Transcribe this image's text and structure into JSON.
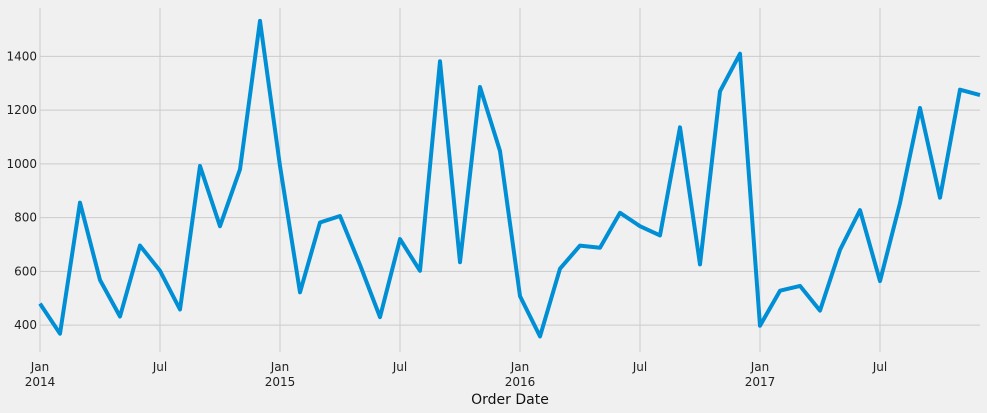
{
  "chart_data": {
    "type": "line",
    "title": "",
    "xlabel": "Order Date",
    "ylabel": "",
    "x_tick_labels": [
      {
        "date": "2014-01",
        "line1": "Jan",
        "line2": "2014"
      },
      {
        "date": "2014-07",
        "line1": "Jul",
        "line2": ""
      },
      {
        "date": "2015-01",
        "line1": "Jan",
        "line2": "2015"
      },
      {
        "date": "2015-07",
        "line1": "Jul",
        "line2": ""
      },
      {
        "date": "2016-01",
        "line1": "Jan",
        "line2": "2016"
      },
      {
        "date": "2016-07",
        "line1": "Jul",
        "line2": ""
      },
      {
        "date": "2017-01",
        "line1": "Jan",
        "line2": "2017"
      },
      {
        "date": "2017-07",
        "line1": "Jul",
        "line2": ""
      }
    ],
    "y_ticks": [
      400,
      600,
      800,
      1000,
      1200,
      1400
    ],
    "y_tick_labels": [
      "400",
      "600",
      "800",
      "1000",
      "1200",
      "1400"
    ],
    "xlim": [
      "2014-01",
      "2017-12"
    ],
    "ylim": [
      300,
      1580
    ],
    "grid": true,
    "line_color": "#008fd5",
    "x": [
      "2014-01",
      "2014-02",
      "2014-03",
      "2014-04",
      "2014-05",
      "2014-06",
      "2014-07",
      "2014-08",
      "2014-09",
      "2014-10",
      "2014-11",
      "2014-12",
      "2015-01",
      "2015-02",
      "2015-03",
      "2015-04",
      "2015-05",
      "2015-06",
      "2015-07",
      "2015-08",
      "2015-09",
      "2015-10",
      "2015-11",
      "2015-12",
      "2016-01",
      "2016-02",
      "2016-03",
      "2016-04",
      "2016-05",
      "2016-06",
      "2016-07",
      "2016-08",
      "2016-09",
      "2016-10",
      "2016-11",
      "2016-12",
      "2017-01",
      "2017-02",
      "2017-03",
      "2017-04",
      "2017-05",
      "2017-06",
      "2017-07",
      "2017-08",
      "2017-09",
      "2017-10",
      "2017-11",
      "2017-12"
    ],
    "values": [
      480,
      368,
      856,
      568,
      432,
      696,
      602,
      458,
      992,
      768,
      980,
      1532,
      992,
      522,
      782,
      806,
      624,
      430,
      720,
      602,
      1382,
      634,
      1286,
      1048,
      508,
      358,
      610,
      696,
      688,
      818,
      768,
      734,
      1136,
      626,
      1270,
      1410,
      398,
      528,
      546,
      454,
      680,
      828,
      564,
      854,
      1208,
      874,
      1276,
      1256
    ]
  }
}
